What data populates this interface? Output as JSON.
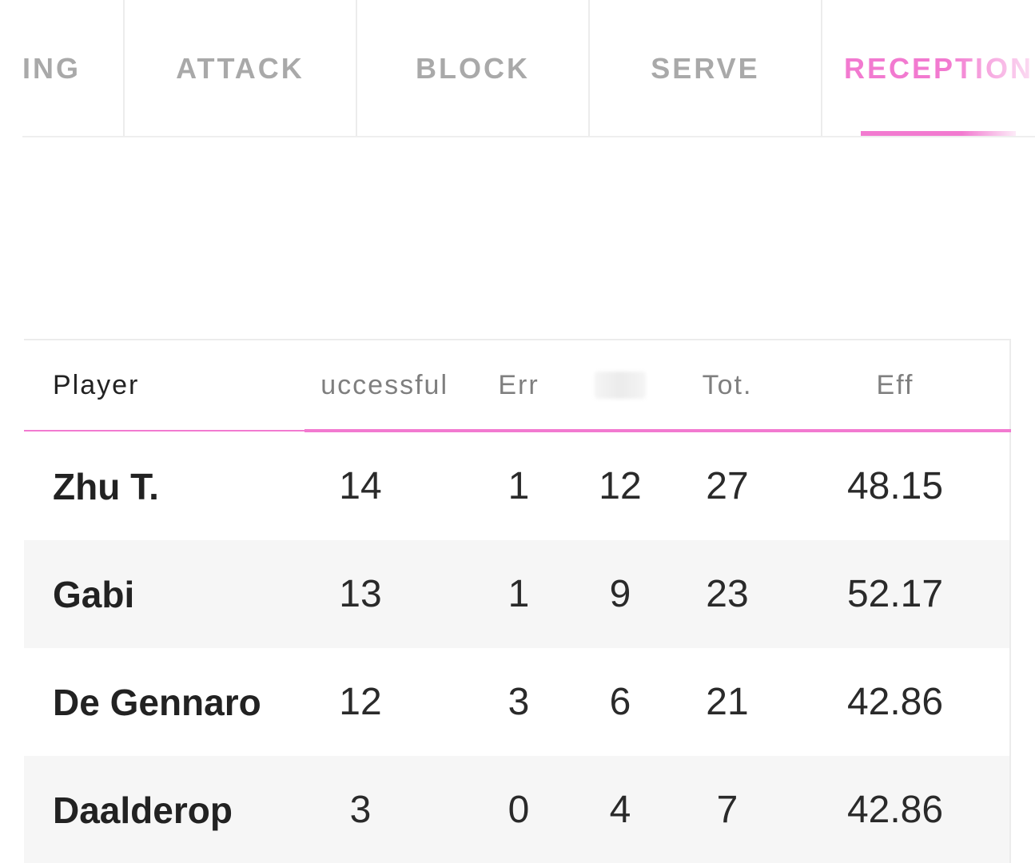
{
  "tabs": [
    {
      "label": "ING",
      "active": false
    },
    {
      "label": "ATTACK",
      "active": false
    },
    {
      "label": "BLOCK",
      "active": false
    },
    {
      "label": "SERVE",
      "active": false
    },
    {
      "label": "RECEPTION",
      "active": true
    }
  ],
  "colors": {
    "accent": "#f27ad0",
    "tab_inactive": "#a9a9a9",
    "row_alt": "#f6f6f6",
    "divider": "#ececec"
  },
  "table": {
    "headers": {
      "player": "Player",
      "successful": "uccessful",
      "err": "Err",
      "tot": "Tot.",
      "eff": "Eff"
    },
    "rows": [
      {
        "player": "Zhu T.",
        "successful": "14",
        "err": "1",
        "col4": "12",
        "tot": "27",
        "eff": "48.15"
      },
      {
        "player": "Gabi",
        "successful": "13",
        "err": "1",
        "col4": "9",
        "tot": "23",
        "eff": "52.17"
      },
      {
        "player": "De Gennaro",
        "successful": "12",
        "err": "3",
        "col4": "6",
        "tot": "21",
        "eff": "42.86"
      },
      {
        "player": "Daalderop",
        "successful": "3",
        "err": "0",
        "col4": "4",
        "tot": "7",
        "eff": "42.86"
      }
    ]
  }
}
